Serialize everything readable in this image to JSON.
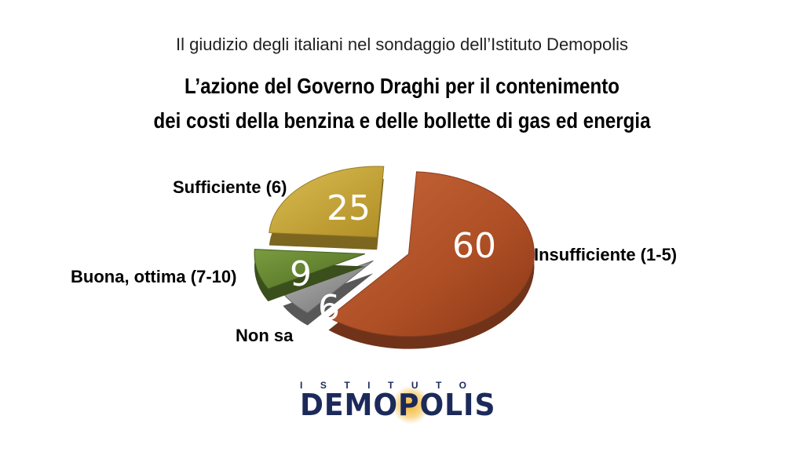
{
  "header": {
    "subtitle": "Il giudizio degli italiani nel sondaggio dell’Istituto Demopolis",
    "title_line1": "L’azione del Governo Draghi per il contenimento",
    "title_line2": "dei costi della benzina e delle bollette di gas ed energia"
  },
  "chart_data": {
    "type": "pie",
    "title": "L’azione del Governo Draghi per il contenimento dei costi della benzina e delle bollette di gas ed energia",
    "slices": [
      {
        "label": "Insufficiente (1-5)",
        "value": 60,
        "value_text": "60",
        "color": "#b4532a"
      },
      {
        "label": "Non sa",
        "value": 6,
        "value_text": "6",
        "color": "#8e8e8e"
      },
      {
        "label": "Buona, ottima (7-10)",
        "value": 9,
        "value_text": "9",
        "color": "#5e7f2c"
      },
      {
        "label": "Sufficiente (6)",
        "value": 25,
        "value_text": "25",
        "color": "#c8a534"
      }
    ],
    "exploded": true,
    "style": "3d"
  },
  "logo": {
    "top_text": "ISTITUTO",
    "main_text_left": "DEM",
    "main_text_o": "O",
    "main_text_right": "POLIS",
    "color": "#1c2a5a",
    "sun_color": "#f4b428"
  }
}
